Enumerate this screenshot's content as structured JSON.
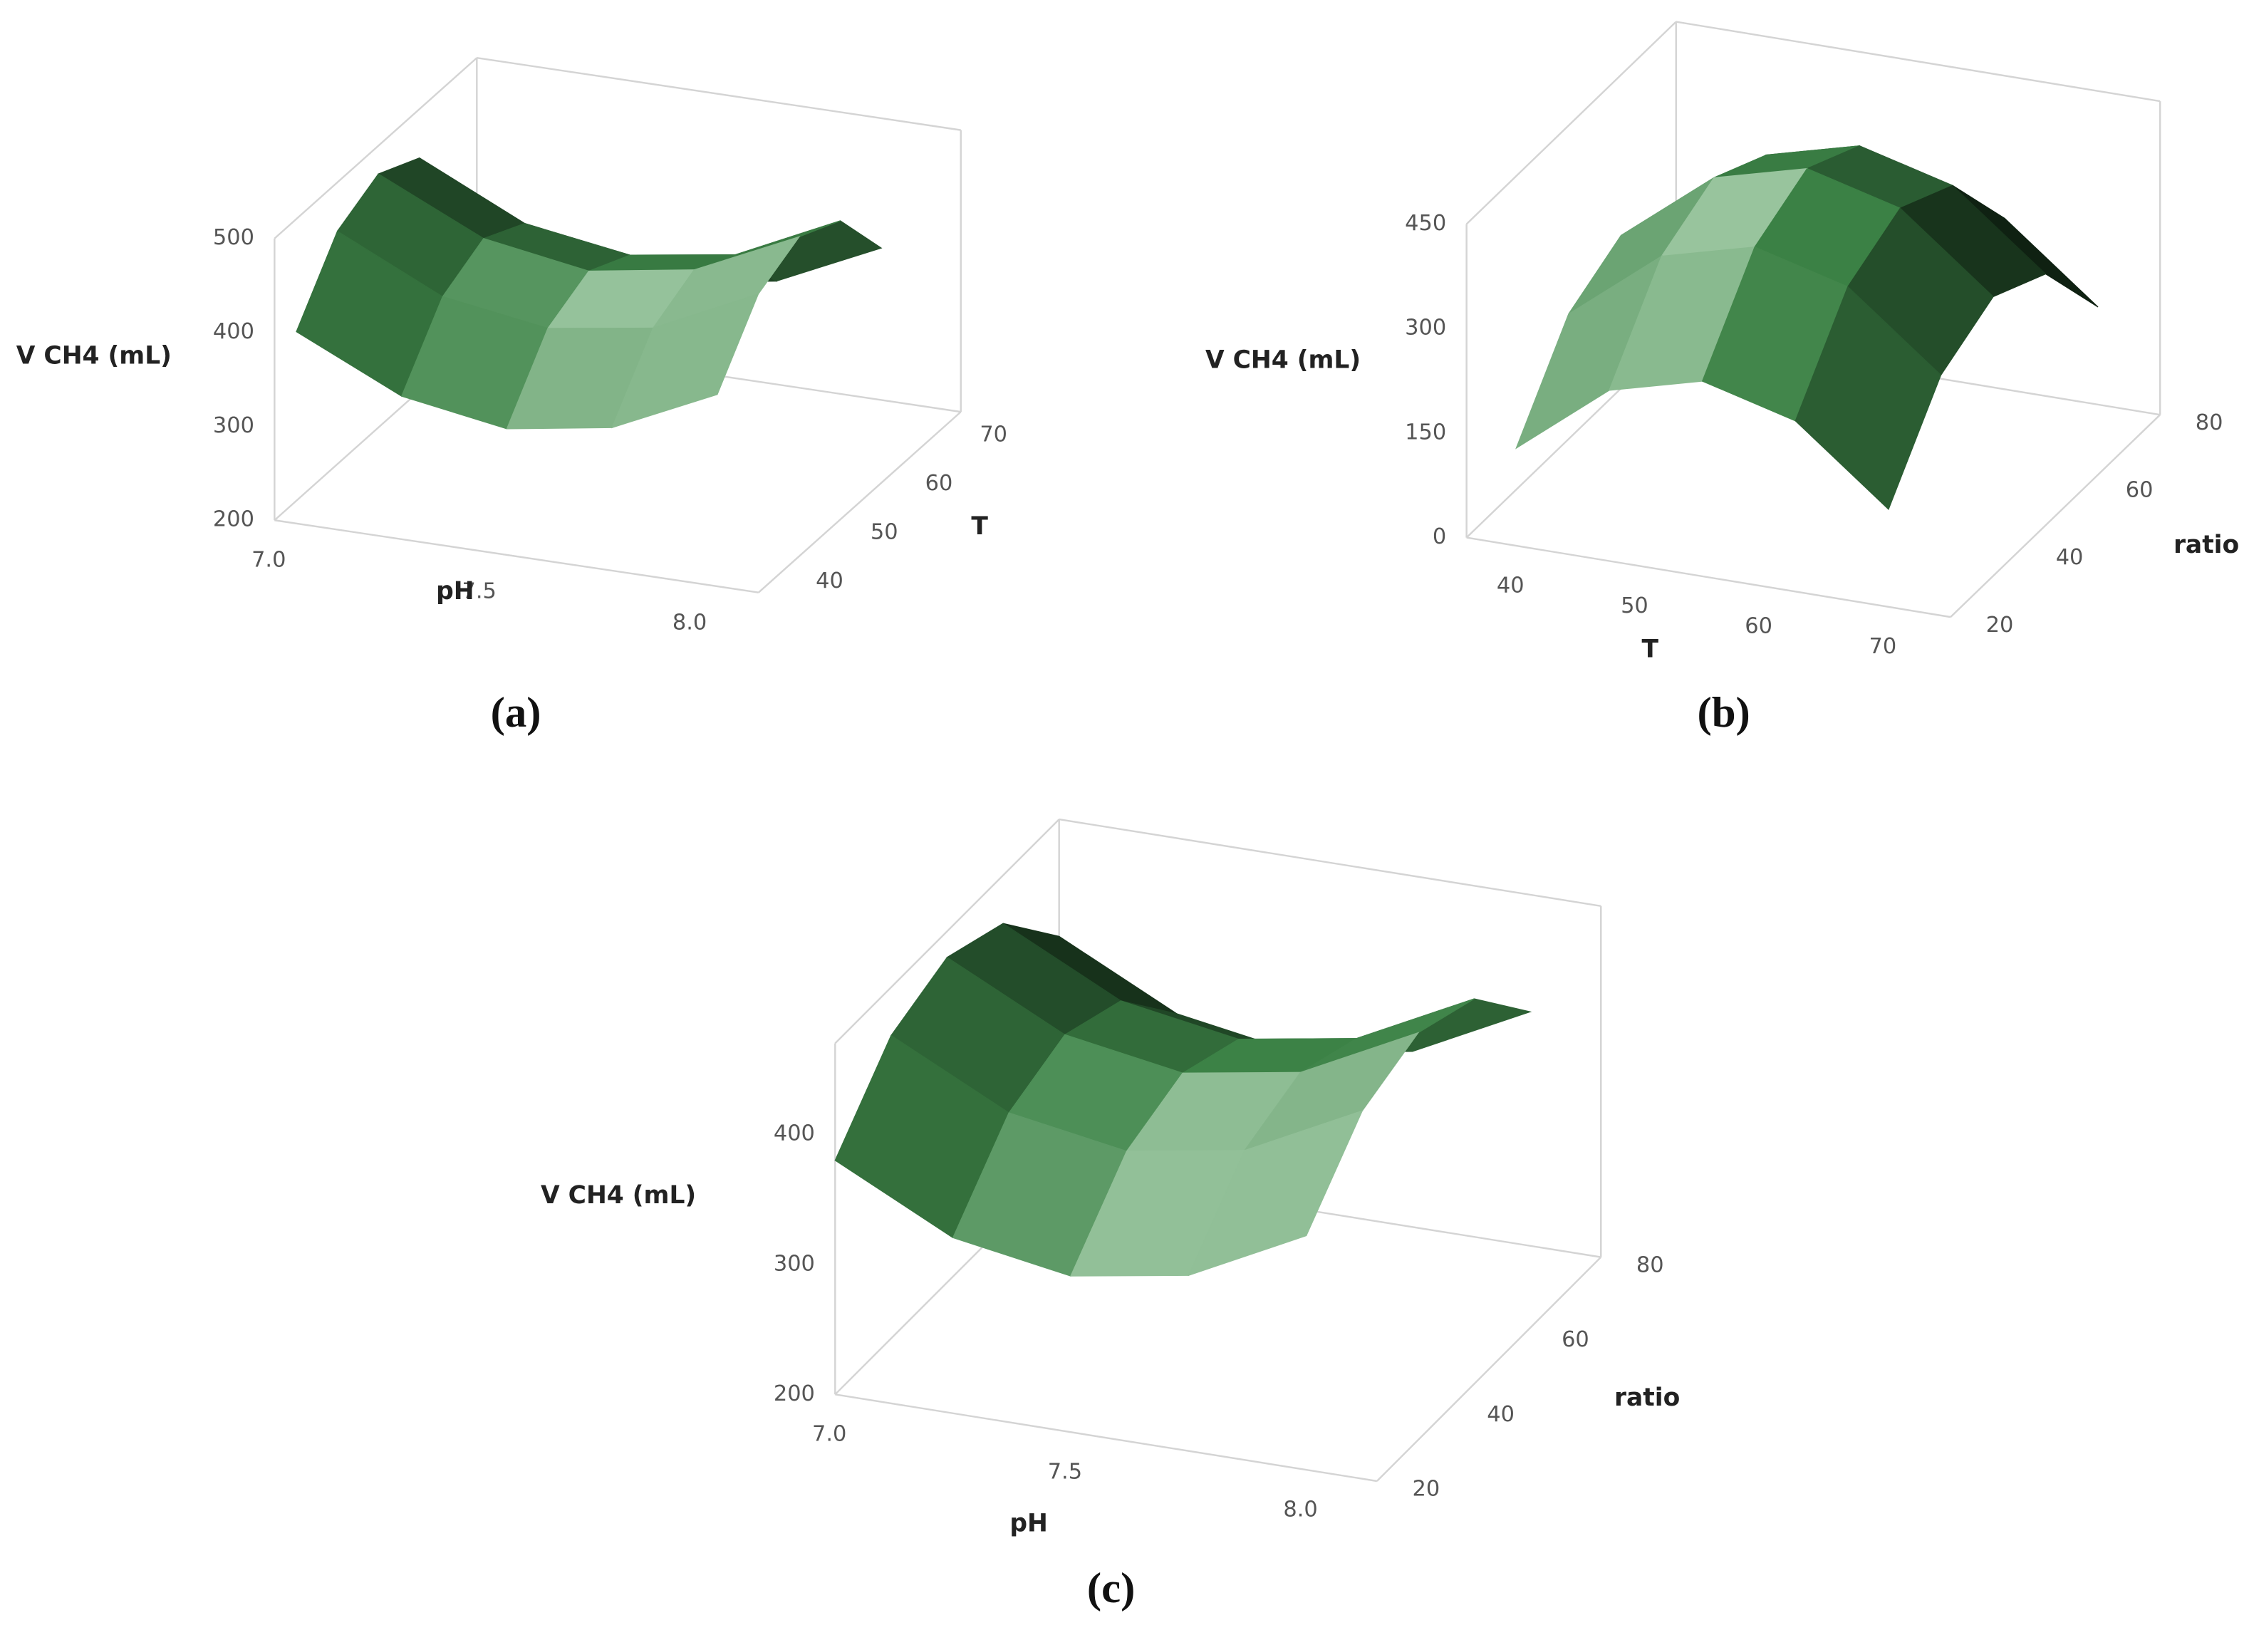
{
  "chart_data": [
    {
      "type": "surface",
      "caption": "(a)",
      "xlabel": "pH",
      "ylabel": "T",
      "zlabel": "V CH4 (mL)",
      "xlim": [
        7,
        8.15
      ],
      "ylim": [
        36,
        73
      ],
      "zlim": [
        200,
        500
      ],
      "xticks": [
        {
          "value": 7,
          "label": "7.0"
        },
        7.5,
        {
          "value": 8,
          "label": "8.0"
        }
      ],
      "yticks": [
        40,
        50,
        60,
        70
      ],
      "zticks": [
        200,
        300,
        400,
        500
      ],
      "x": [
        7,
        7.25,
        7.5,
        7.75,
        8
      ],
      "y": [
        40,
        47.5,
        55,
        62.5,
        70
      ],
      "z": [
        [
          380,
          328,
          310,
          328,
          380
        ],
        [
          448,
          395,
          378,
          395,
          448
        ],
        [
          470,
          418,
          400,
          418,
          470
        ],
        [
          448,
          395,
          378,
          395,
          448
        ],
        [
          380,
          328,
          310,
          328,
          380
        ]
      ],
      "color": "#3c8246"
    },
    {
      "type": "surface",
      "caption": "(b)",
      "xlabel": "T",
      "ylabel": "ratio",
      "zlabel": "V CH4 (mL)",
      "xlim": [
        36,
        75
      ],
      "ylim": [
        20,
        80
      ],
      "zlim": [
        0,
        450
      ],
      "xticks": [
        40,
        50,
        60,
        70
      ],
      "yticks": [
        20,
        40,
        60,
        80
      ],
      "zticks": [
        0,
        150,
        300,
        450
      ],
      "x": [
        40,
        47.5,
        55,
        62.5,
        70
      ],
      "y": [
        20,
        35,
        50,
        65,
        80
      ],
      "z": [
        [
          140,
          245,
          280,
          245,
          140
        ],
        [
          260,
          365,
          400,
          365,
          260
        ],
        [
          300,
          405,
          440,
          405,
          300
        ],
        [
          260,
          365,
          400,
          365,
          260
        ],
        [
          140,
          245,
          280,
          245,
          140
        ]
      ],
      "color": "#3c8246"
    },
    {
      "type": "surface",
      "caption": "(c)",
      "xlabel": "pH",
      "ylabel": "ratio",
      "zlabel": "V CH4 (mL)",
      "xlim": [
        7,
        8.15
      ],
      "ylim": [
        20,
        80
      ],
      "zlim": [
        200,
        470
      ],
      "xticks": [
        {
          "value": 7,
          "label": "7.0"
        },
        7.5,
        {
          "value": 8,
          "label": "8.0"
        }
      ],
      "yticks": [
        20,
        40,
        60,
        80
      ],
      "zticks": [
        200,
        300,
        400
      ],
      "x": [
        7,
        7.25,
        7.5,
        7.75,
        8
      ],
      "y": [
        20,
        35,
        50,
        65,
        80
      ],
      "z": [
        [
          380,
          335,
          320,
          335,
          380
        ],
        [
          433,
          388,
          373,
          388,
          433
        ],
        [
          450,
          405,
          390,
          405,
          450
        ],
        [
          433,
          388,
          373,
          388,
          433
        ],
        [
          380,
          335,
          320,
          335,
          380
        ]
      ],
      "color": "#3c8246"
    }
  ]
}
